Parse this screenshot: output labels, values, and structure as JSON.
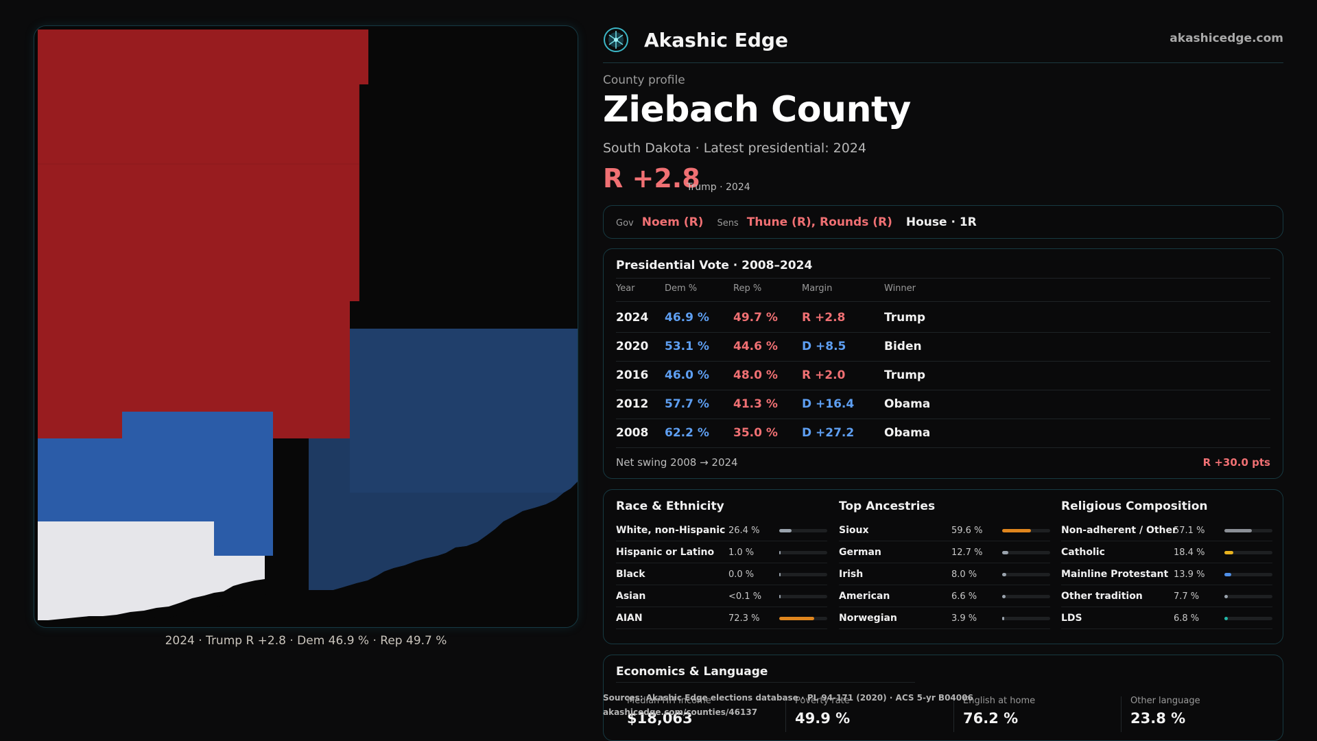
{
  "brand": {
    "name": "Akashic Edge",
    "url": "akashicedge.com",
    "logo_icon": "atom-network-icon"
  },
  "header": {
    "eyebrow": "County profile",
    "title": "Ziebach County",
    "subtitle": "South Dakota · Latest presidential: 2024",
    "margin": "R +2.8",
    "margin_note": "Trump · 2024"
  },
  "officials": {
    "gov_label": "Gov",
    "gov": "Noem (R)",
    "sens_label": "Sens",
    "sens": "Thune (R), Rounds (R)",
    "house": "House · 1R"
  },
  "presidential": {
    "title": "Presidential Vote · 2008–2024",
    "headers": [
      "Year",
      "Dem %",
      "Rep %",
      "Margin",
      "Winner"
    ],
    "rows": [
      {
        "year": "2024",
        "dem": "46.9 %",
        "rep": "49.7 %",
        "margin": "R +2.8",
        "party": "R",
        "winner": "Trump"
      },
      {
        "year": "2020",
        "dem": "53.1 %",
        "rep": "44.6 %",
        "margin": "D +8.5",
        "party": "D",
        "winner": "Biden"
      },
      {
        "year": "2016",
        "dem": "46.0 %",
        "rep": "48.0 %",
        "margin": "R +2.0",
        "party": "R",
        "winner": "Trump"
      },
      {
        "year": "2012",
        "dem": "57.7 %",
        "rep": "41.3 %",
        "margin": "D +16.4",
        "party": "D",
        "winner": "Obama"
      },
      {
        "year": "2008",
        "dem": "62.2 %",
        "rep": "35.0 %",
        "margin": "D +27.2",
        "party": "D",
        "winner": "Obama"
      }
    ],
    "swing_label": "Net swing 2008 → 2024",
    "swing_value": "R +30.0 pts"
  },
  "demographics": [
    {
      "title": "Race & Ethnicity",
      "items": [
        {
          "label": "White, non-Hispanic",
          "pct": "26.4 %",
          "value": 0.264,
          "color": "#9aa3ad"
        },
        {
          "label": "Hispanic or Latino",
          "pct": "1.0 %",
          "value": 0.01,
          "color": "#9aa3ad"
        },
        {
          "label": "Black",
          "pct": "0.0 %",
          "value": 0.0,
          "color": "#9aa3ad"
        },
        {
          "label": "Asian",
          "pct": "<0.1 %",
          "value": 0.0,
          "color": "#9aa3ad"
        },
        {
          "label": "AIAN",
          "pct": "72.3 %",
          "value": 0.723,
          "color": "#e0861e"
        }
      ]
    },
    {
      "title": "Top Ancestries",
      "items": [
        {
          "label": "Sioux",
          "pct": "59.6 %",
          "value": 0.596,
          "color": "#e0861e"
        },
        {
          "label": "German",
          "pct": "12.7 %",
          "value": 0.127,
          "color": "#9aa3ad"
        },
        {
          "label": "Irish",
          "pct": "8.0 %",
          "value": 0.08,
          "color": "#9aa3ad"
        },
        {
          "label": "American",
          "pct": "6.6 %",
          "value": 0.066,
          "color": "#9aa3ad"
        },
        {
          "label": "Norwegian",
          "pct": "3.9 %",
          "value": 0.039,
          "color": "#9aa3ad"
        }
      ]
    },
    {
      "title": "Religious Composition",
      "items": [
        {
          "label": "Non-adherent / Other",
          "pct": "57.1 %",
          "value": 0.571,
          "color": "#8b8f96"
        },
        {
          "label": "Catholic",
          "pct": "18.4 %",
          "value": 0.184,
          "color": "#e8b21e"
        },
        {
          "label": "Mainline Protestant",
          "pct": "13.9 %",
          "value": 0.139,
          "color": "#4f8fe8"
        },
        {
          "label": "Other tradition",
          "pct": "7.7 %",
          "value": 0.077,
          "color": "#9aa3ad"
        },
        {
          "label": "LDS",
          "pct": "6.8 %",
          "value": 0.068,
          "color": "#22b8a8"
        }
      ]
    }
  ],
  "economics": {
    "title": "Economics & Language",
    "stats": [
      {
        "label": "Median HH income",
        "value": "$18,063"
      },
      {
        "label": "Poverty rate",
        "value": "49.9 %"
      },
      {
        "label": "English at home",
        "value": "76.2 %"
      },
      {
        "label": "Other language",
        "value": "23.8 %"
      }
    ]
  },
  "sources": {
    "line1": "Sources: Akashic Edge elections database · PL 94-171 (2020) · ACS 5-yr B04006",
    "line2": "akashicedge.com/counties/46137"
  },
  "map": {
    "caption": "2024 · Trump R +2.8 · Dem 46.9 % · Rep 49.7 %",
    "colors": {
      "rep": "#981c1f",
      "dem_strong": "#2b5ca8",
      "dem_dark": "#1e3a62",
      "neutral": "#e6e6ea",
      "land_empty": "#080808"
    }
  },
  "colors": {
    "accent": "#163a44",
    "rep": "#f07073",
    "dem": "#5e9ff2"
  }
}
